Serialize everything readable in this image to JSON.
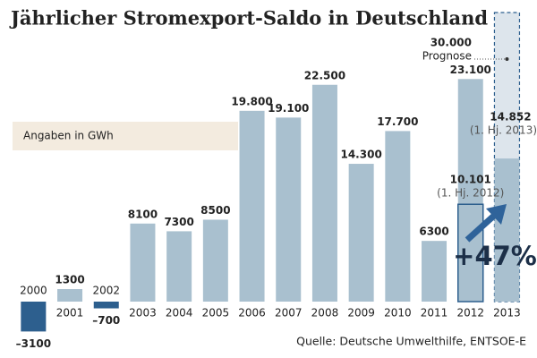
{
  "chart_data": {
    "type": "bar",
    "title": "Jährlicher Stromexport-Saldo in Deutschland",
    "categories": [
      "2000",
      "2001",
      "2002",
      "2003",
      "2004",
      "2005",
      "2006",
      "2007",
      "2008",
      "2009",
      "2010",
      "2011",
      "2012",
      "2013"
    ],
    "values": [
      -3100,
      1300,
      -700,
      8100,
      7300,
      8500,
      19800,
      19100,
      22500,
      14300,
      17700,
      6300,
      23100,
      14852
    ],
    "value_labels": [
      "–3100",
      "1300",
      "–700",
      "8100",
      "7300",
      "8500",
      "19.800",
      "19.100",
      "22.500",
      "14.300",
      "17.700",
      "6300",
      "23.100",
      "14.852"
    ],
    "notes": [
      null,
      null,
      null,
      null,
      null,
      null,
      null,
      null,
      null,
      null,
      null,
      null,
      null,
      "(1. Hj. 2013)"
    ],
    "color": "#a9c0cf",
    "negative_color": "#2d5f8e",
    "half_year": {
      "value": 10101,
      "value_label": "10.101",
      "note": "(1. Hj. 2012)"
    },
    "forecast": {
      "value": 30000,
      "value_label": "30.000",
      "label": "Prognose",
      "color": "#dde5ec"
    },
    "change_label": "+47%",
    "unit_note": "Angaben in GWh",
    "source": "Quelle: Deutsche Umwelthilfe, ENTSOE-E"
  }
}
